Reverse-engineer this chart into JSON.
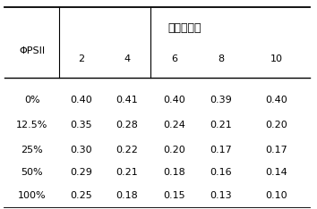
{
  "header_top": "时间（天）",
  "col_label": "ΦPSII",
  "col_headers": [
    "2",
    "4",
    "6",
    "8",
    "10"
  ],
  "row_labels": [
    "0%",
    "12.5%",
    "25%",
    "50%",
    "100%"
  ],
  "table_data": [
    [
      "0.40",
      "0.41",
      "0.40",
      "0.39",
      "0.40"
    ],
    [
      "0.35",
      "0.28",
      "0.24",
      "0.21",
      "0.20"
    ],
    [
      "0.30",
      "0.22",
      "0.20",
      "0.17",
      "0.17"
    ],
    [
      "0.29",
      "0.21",
      "0.18",
      "0.16",
      "0.14"
    ],
    [
      "0.25",
      "0.18",
      "0.15",
      "0.13",
      "0.10"
    ]
  ],
  "font_size": 8.0,
  "header_font_size": 9.0,
  "bg_color": "#ffffff",
  "text_color": "#000000"
}
